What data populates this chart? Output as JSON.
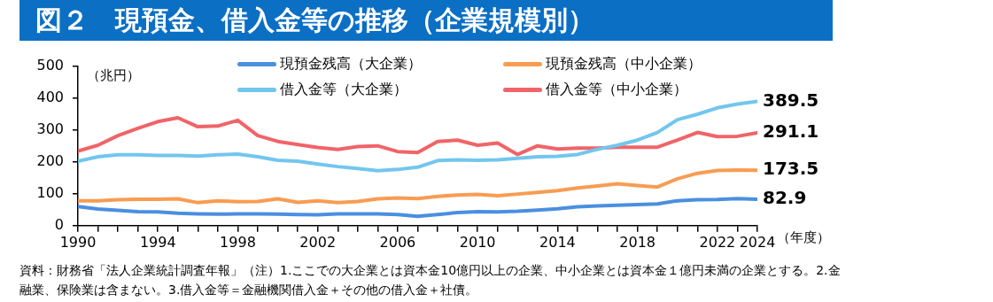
{
  "chart_data": {
    "type": "line",
    "title": "図２　現預金、借入金等の推移（企業規模別）",
    "ylabel": "（兆円）",
    "xlabel": "（年度）",
    "annotations": [
      "資料：財務省「法人企業統計調査年報」（注）1.ここでの大企業とは資本金10億円以上の企業、中小企業とは資本金１億円未満の企業とする。2.金融業、保険業は含まない。3.借入金等＝金融機関借入金＋その他の借入金＋社債。"
    ],
    "x": [
      1990,
      1991,
      1992,
      1993,
      1994,
      1995,
      1996,
      1997,
      1998,
      1999,
      2000,
      2001,
      2002,
      2003,
      2004,
      2005,
      2006,
      2007,
      2008,
      2009,
      2010,
      2011,
      2012,
      2013,
      2014,
      2015,
      2016,
      2017,
      2018,
      2019,
      2020,
      2021,
      2022,
      2023,
      2024
    ],
    "xlim": [
      1990,
      2024
    ],
    "xticks": [
      1990,
      {
        "value": 1991,
        "label": null
      },
      {
        "value": 1992,
        "label": null
      },
      {
        "value": 1993,
        "label": null
      },
      1994,
      {
        "value": 1995,
        "label": null
      },
      {
        "value": 1996,
        "label": null
      },
      {
        "value": 1997,
        "label": null
      },
      1998,
      {
        "value": 1999,
        "label": null
      },
      {
        "value": 2000,
        "label": null
      },
      {
        "value": 2001,
        "label": null
      },
      2002,
      {
        "value": 2003,
        "label": null
      },
      {
        "value": 2004,
        "label": null
      },
      {
        "value": 2005,
        "label": null
      },
      2006,
      {
        "value": 2007,
        "label": null
      },
      {
        "value": 2008,
        "label": null
      },
      {
        "value": 2009,
        "label": null
      },
      2010,
      {
        "value": 2011,
        "label": null
      },
      {
        "value": 2012,
        "label": null
      },
      {
        "value": 2013,
        "label": null
      },
      2014,
      {
        "value": 2015,
        "label": null
      },
      {
        "value": 2016,
        "label": null
      },
      {
        "value": 2017,
        "label": null
      },
      2018,
      {
        "value": 2019,
        "label": null
      },
      {
        "value": 2020,
        "label": null
      },
      {
        "value": 2021,
        "label": null
      },
      2022,
      {
        "value": 2023,
        "label": null
      },
      2024
    ],
    "ylim": [
      0,
      500
    ],
    "yticks": [
      0,
      100,
      200,
      300,
      400,
      500
    ],
    "grid": false,
    "legend": "top",
    "marker": "none",
    "line_style": "solid",
    "series": [
      {
        "name": "現預金残高（大企業）",
        "color": "#4a8fe0",
        "values": [
          60,
          52,
          48,
          44,
          43,
          39,
          37,
          36,
          37,
          37,
          36,
          35,
          34,
          37,
          37,
          37,
          35,
          29,
          35,
          41,
          44,
          43,
          45,
          49,
          53,
          59,
          62,
          64,
          66,
          68,
          78,
          81,
          82,
          85,
          82.9
        ],
        "value_labels": [
          null,
          null,
          null,
          null,
          null,
          null,
          null,
          null,
          null,
          null,
          null,
          null,
          null,
          null,
          null,
          null,
          null,
          null,
          null,
          null,
          null,
          null,
          null,
          null,
          null,
          null,
          null,
          null,
          null,
          null,
          null,
          null,
          null,
          null,
          "82.9"
        ]
      },
      {
        "name": "現預金残高（中小企業）",
        "color": "#f89c52",
        "values": [
          78,
          78,
          81,
          83,
          83,
          84,
          72,
          78,
          75,
          76,
          84,
          73,
          78,
          72,
          76,
          84,
          87,
          85,
          92,
          96,
          98,
          94,
          99,
          104,
          110,
          118,
          124,
          131,
          126,
          121,
          147,
          164,
          173,
          174,
          173.5
        ],
        "value_labels": [
          null,
          null,
          null,
          null,
          null,
          null,
          null,
          null,
          null,
          null,
          null,
          null,
          null,
          null,
          null,
          null,
          null,
          null,
          null,
          null,
          null,
          null,
          null,
          null,
          null,
          null,
          null,
          null,
          null,
          null,
          null,
          null,
          null,
          null,
          "173.5"
        ]
      },
      {
        "name": "借入金等（大企業）",
        "color": "#72c6ee",
        "values": [
          202,
          216,
          222,
          222,
          220,
          220,
          218,
          222,
          224,
          216,
          205,
          202,
          193,
          185,
          179,
          172,
          176,
          183,
          204,
          206,
          205,
          206,
          211,
          216,
          217,
          223,
          239,
          252,
          268,
          292,
          332,
          349,
          369,
          381,
          389.5
        ],
        "value_labels": [
          null,
          null,
          null,
          null,
          null,
          null,
          null,
          null,
          null,
          null,
          null,
          null,
          null,
          null,
          null,
          null,
          null,
          null,
          null,
          null,
          null,
          null,
          null,
          null,
          null,
          null,
          null,
          null,
          null,
          null,
          null,
          null,
          null,
          null,
          "389.5"
        ]
      },
      {
        "name": "借入金等（中小企業）",
        "color": "#f06468",
        "values": [
          234,
          252,
          282,
          305,
          326,
          338,
          310,
          312,
          330,
          282,
          264,
          254,
          245,
          239,
          248,
          250,
          232,
          229,
          264,
          268,
          252,
          259,
          223,
          250,
          240,
          243,
          243,
          246,
          246,
          246,
          268,
          292,
          279,
          280,
          291.1
        ],
        "value_labels": [
          null,
          null,
          null,
          null,
          null,
          null,
          null,
          null,
          null,
          null,
          null,
          null,
          null,
          null,
          null,
          null,
          null,
          null,
          null,
          null,
          null,
          null,
          null,
          null,
          null,
          null,
          null,
          null,
          null,
          null,
          null,
          null,
          null,
          null,
          "291.1"
        ]
      }
    ]
  }
}
